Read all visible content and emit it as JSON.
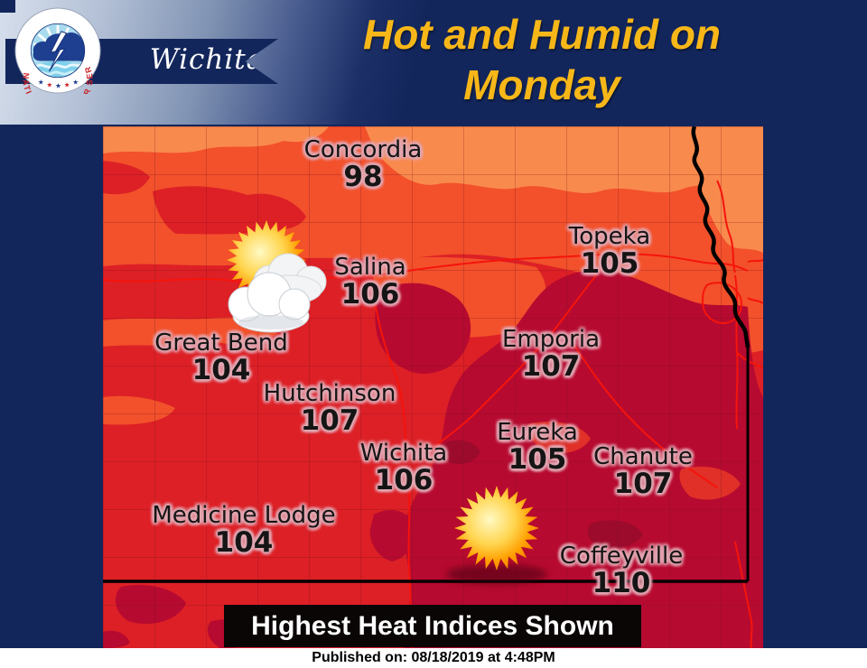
{
  "branding": {
    "office": "Wichita",
    "logo_ring_text": "NATIONAL WEATHER SERVICE"
  },
  "header": {
    "title_line1": "Hot and Humid on",
    "title_line2": "Monday"
  },
  "map": {
    "caption": "Highest Heat Indices Shown",
    "cities": [
      {
        "name": "Concordia",
        "value": "98"
      },
      {
        "name": "Topeka",
        "value": "105"
      },
      {
        "name": "Salina",
        "value": "106"
      },
      {
        "name": "Emporia",
        "value": "107"
      },
      {
        "name": "Great Bend",
        "value": "104"
      },
      {
        "name": "Hutchinson",
        "value": "107"
      },
      {
        "name": "Wichita",
        "value": "106"
      },
      {
        "name": "Eureka",
        "value": "105"
      },
      {
        "name": "Chanute",
        "value": "107"
      },
      {
        "name": "Medicine Lodge",
        "value": "104"
      },
      {
        "name": "Coffeyville",
        "value": "110"
      }
    ],
    "icons": {
      "near_salina": "sun-behind-clouds",
      "near_coffeyville": "sun"
    },
    "heat_palette": {
      "light_orange": "#F98A4D",
      "orange_red": "#F2512B",
      "red": "#DD2026",
      "crimson": "#B70A30",
      "dark_maroon": "#9C0B2C"
    }
  },
  "footer": {
    "published": "Published on: 08/18/2019 at 4:48PM"
  },
  "colors": {
    "navy": "#13265C",
    "gold": "#F7B718"
  }
}
